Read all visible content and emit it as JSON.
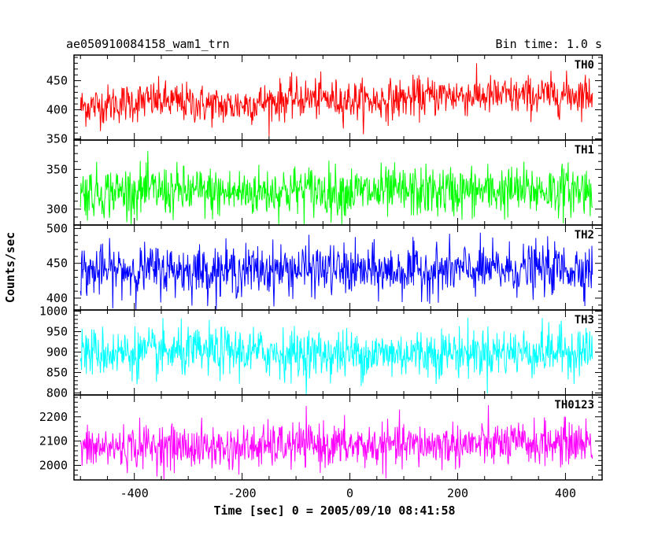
{
  "chart_data": {
    "type": "line",
    "title": "ae050910084158_wam1_trn",
    "subtitle": "Bin time: 1.0 s",
    "xlabel": "Time [sec] 0 = 2005/09/10 08:41:58",
    "ylabel": "Counts/sec",
    "xlim": [
      -512,
      468
    ],
    "xticks": [
      -400,
      -200,
      0,
      200,
      400
    ],
    "x_range": [
      -500,
      450
    ],
    "bin_time": 1.0,
    "grid": false,
    "panels": [
      {
        "name": "TH0",
        "color": "#ff0000",
        "ylim": [
          348,
          494
        ],
        "yticks": [
          350,
          400,
          450
        ],
        "mean": 412,
        "trend": [
          405,
          416,
          406,
          420,
          415,
          425,
          423,
          428
        ],
        "noise_sd": 17,
        "clip": [
          348,
          494
        ]
      },
      {
        "name": "TH1",
        "color": "#00ff00",
        "ylim": [
          280,
          387
        ],
        "yticks": [
          300,
          350
        ],
        "mean": 322,
        "trend": [
          321,
          323,
          320,
          324,
          321,
          322,
          323,
          325
        ],
        "noise_sd": 16,
        "clip": [
          280,
          387
        ]
      },
      {
        "name": "TH2",
        "color": "#0000ff",
        "ylim": [
          383,
          505
        ],
        "yticks": [
          400,
          450,
          500
        ],
        "mean": 440,
        "trend": [
          438,
          441,
          439,
          442,
          438,
          440,
          441,
          443
        ],
        "noise_sd": 18,
        "clip": [
          383,
          505
        ]
      },
      {
        "name": "TH3",
        "color": "#00ffff",
        "ylim": [
          795,
          1003
        ],
        "yticks": [
          800,
          850,
          900,
          950,
          1000
        ],
        "mean": 898,
        "trend": [
          900,
          897,
          901,
          896,
          895,
          899,
          900,
          904
        ],
        "noise_sd": 30,
        "clip": [
          795,
          1003
        ]
      },
      {
        "name": "TH0123",
        "color": "#ff00ff",
        "ylim": [
          1940,
          2290
        ],
        "yticks": [
          2000,
          2100,
          2200
        ],
        "mean": 2075,
        "trend": [
          2068,
          2080,
          2070,
          2085,
          2078,
          2085,
          2088,
          2095
        ],
        "noise_sd": 45,
        "clip": [
          1940,
          2290
        ]
      }
    ]
  }
}
